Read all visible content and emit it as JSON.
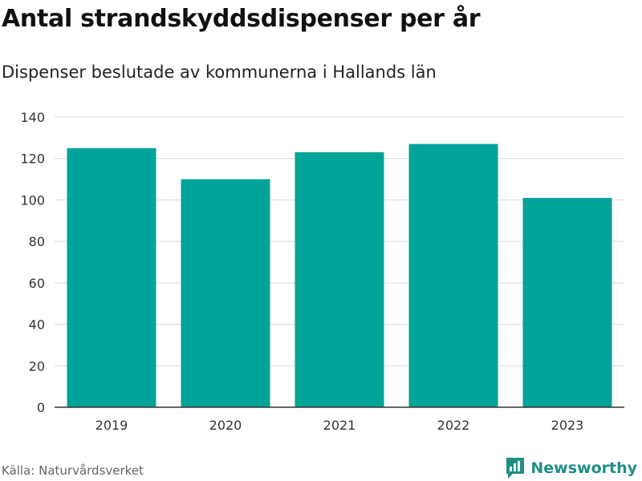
{
  "colors": {
    "bar": "#00a398",
    "brand": "#1f8f86"
  },
  "brand": {
    "name": "Newsworthy",
    "icon": "newsworthy-logo-icon"
  },
  "source": "Källa: Naturvårdsverket",
  "chart_data": {
    "type": "bar",
    "title": "Antal strandskyddsdispenser per år",
    "subtitle": "Dispenser beslutade av kommunerna i Hallands län",
    "xlabel": "",
    "ylabel": "",
    "categories": [
      "2019",
      "2020",
      "2021",
      "2022",
      "2023"
    ],
    "values": [
      125,
      110,
      123,
      127,
      101
    ],
    "ylim": [
      0,
      140
    ],
    "yticks": [
      0,
      20,
      40,
      60,
      80,
      100,
      120,
      140
    ],
    "grid": true,
    "legend": "none"
  }
}
